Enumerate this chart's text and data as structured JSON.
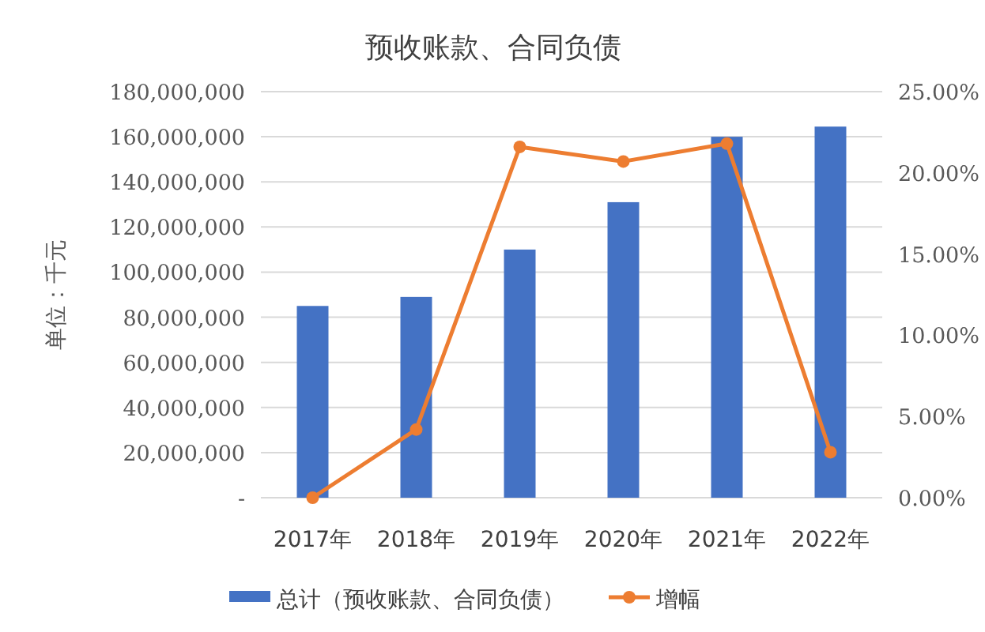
{
  "chart_data": {
    "type": "bar",
    "title": "预收账款、合同负债",
    "ylabel": "单位：千元",
    "categories": [
      "2017年",
      "2018年",
      "2019年",
      "2020年",
      "2021年",
      "2022年"
    ],
    "series": [
      {
        "name": "总计（预收账款、合同负债）",
        "color": "#4472c4",
        "values": [
          85000000,
          89000000,
          110000000,
          131000000,
          160000000,
          164500000
        ]
      },
      {
        "name": "增幅",
        "type": "line",
        "axis": "y2",
        "color": "#ed7d31",
        "marker": "circle",
        "values": [
          0.0,
          4.2,
          21.6,
          20.7,
          21.8,
          2.8
        ]
      }
    ],
    "ylim": [
      0,
      180000000
    ],
    "yticks": [
      {
        "value": 0,
        "label": "-"
      },
      {
        "value": 20000000,
        "label": "20,000,000"
      },
      {
        "value": 40000000,
        "label": "40,000,000"
      },
      {
        "value": 60000000,
        "label": "60,000,000"
      },
      {
        "value": 80000000,
        "label": "80,000,000"
      },
      {
        "value": 100000000,
        "label": "100,000,000"
      },
      {
        "value": 120000000,
        "label": "120,000,000"
      },
      {
        "value": 140000000,
        "label": "140,000,000"
      },
      {
        "value": 160000000,
        "label": "160,000,000"
      },
      {
        "value": 180000000,
        "label": "180,000,000"
      }
    ],
    "y2lim": [
      0,
      25
    ],
    "y2ticks": [
      {
        "value": 0,
        "label": "0.00%"
      },
      {
        "value": 5,
        "label": "5.00%"
      },
      {
        "value": 10,
        "label": "10.00%"
      },
      {
        "value": 15,
        "label": "15.00%"
      },
      {
        "value": 20,
        "label": "20.00%"
      },
      {
        "value": 25,
        "label": "25.00%"
      }
    ],
    "grid": "y",
    "legend": "bottom"
  }
}
